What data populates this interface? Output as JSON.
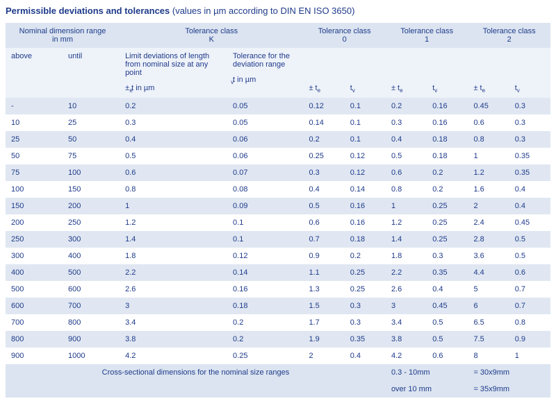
{
  "title_bold": "Permissible deviations and tolerances",
  "title_rest": " (values in µm according to DIN EN ISO 3650)",
  "header": {
    "nominal": "Nominal dimension range\nin mm",
    "classK": "Tolerance class\nK",
    "class0": "Tolerance class\n0",
    "class1": "Tolerance class\n1",
    "class2": "Tolerance class\n2",
    "above": "above",
    "until": "until",
    "limit_dev": "Limit deviations of length from nominal size at any point",
    "tol_dev_range": "Tolerance for the deviation range",
    "te_um": "± t  in µm",
    "tv_um": "t  in µm",
    "te": "± t",
    "tv": "t",
    "te_sub": "e",
    "tv_sub": "v"
  },
  "rows": [
    [
      "-",
      "10",
      "0.2",
      "0.05",
      "0.12",
      "0.1",
      "0.2",
      "0.16",
      "0.45",
      "0.3"
    ],
    [
      "10",
      "25",
      "0.3",
      "0.05",
      "0.14",
      "0.1",
      "0.3",
      "0.16",
      "0.6",
      "0.3"
    ],
    [
      "25",
      "50",
      "0.4",
      "0.06",
      "0.2",
      "0.1",
      "0.4",
      "0.18",
      "0.8",
      "0.3"
    ],
    [
      "50",
      "75",
      "0.5",
      "0.06",
      "0.25",
      "0.12",
      "0.5",
      "0.18",
      "1",
      "0.35"
    ],
    [
      "75",
      "100",
      "0.6",
      "0.07",
      "0.3",
      "0.12",
      "0.6",
      "0.2",
      "1.2",
      "0.35"
    ],
    [
      "100",
      "150",
      "0.8",
      "0.08",
      "0.4",
      "0.14",
      "0.8",
      "0.2",
      "1.6",
      "0.4"
    ],
    [
      "150",
      "200",
      "1",
      "0.09",
      "0.5",
      "0.16",
      "1",
      "0.25",
      "2",
      "0.4"
    ],
    [
      "200",
      "250",
      "1.2",
      "0.1",
      "0.6",
      "0.16",
      "1.2",
      "0.25",
      "2.4",
      "0.45"
    ],
    [
      "250",
      "300",
      "1.4",
      "0.1",
      "0.7",
      "0.18",
      "1.4",
      "0.25",
      "2.8",
      "0.5"
    ],
    [
      "300",
      "400",
      "1.8",
      "0.12",
      "0.9",
      "0.2",
      "1.8",
      "0.3",
      "3.6",
      "0.5"
    ],
    [
      "400",
      "500",
      "2.2",
      "0.14",
      "1.1",
      "0.25",
      "2.2",
      "0.35",
      "4.4",
      "0.6"
    ],
    [
      "500",
      "600",
      "2.6",
      "0.16",
      "1.3",
      "0.25",
      "2.6",
      "0.4",
      "5",
      "0.7"
    ],
    [
      "600",
      "700",
      "3",
      "0.18",
      "1.5",
      "0.3",
      "3",
      "0.45",
      "6",
      "0.7"
    ],
    [
      "700",
      "800",
      "3.4",
      "0.2",
      "1.7",
      "0.3",
      "3.4",
      "0.5",
      "6.5",
      "0.8"
    ],
    [
      "800",
      "900",
      "3.8",
      "0.2",
      "1.9",
      "0.35",
      "3.8",
      "0.5",
      "7.5",
      "0.9"
    ],
    [
      "900",
      "1000",
      "4.2",
      "0.25",
      "2",
      "0.4",
      "4.2",
      "0.6",
      "8",
      "1"
    ]
  ],
  "footer": {
    "label": "Cross-sectional dimensions for the nominal size ranges",
    "r1a": "0.3 - 10mm",
    "r1b": "= 30x9mm",
    "r2a": "over 10 mm",
    "r2b": "= 35x9mm"
  },
  "style": {
    "col_widths_pct": [
      9,
      9,
      17,
      12,
      6.5,
      6.5,
      6.5,
      6.5,
      6.5,
      6.5
    ]
  }
}
